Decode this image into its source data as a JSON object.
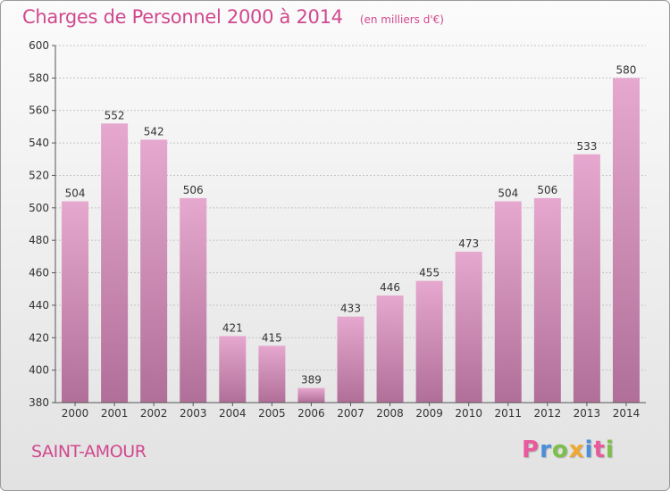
{
  "title": "Charges de Personnel 2000 à 2014",
  "subtitle": "(en milliers d'€)",
  "city": "SAINT-AMOUR",
  "logo": {
    "text": "Proxiti",
    "colors": [
      "#e85a9c",
      "#4a8fd8",
      "#7cc04a",
      "#f0a830",
      "#4a8fd8",
      "#e85a9c",
      "#7cc04a"
    ]
  },
  "colors": {
    "bar_light": "#e6a8cf",
    "bar_dark": "#b06f98",
    "accent": "#d0488e"
  },
  "chart_data": {
    "type": "bar",
    "categories": [
      "2000",
      "2001",
      "2002",
      "2003",
      "2004",
      "2005",
      "2006",
      "2007",
      "2008",
      "2009",
      "2010",
      "2011",
      "2012",
      "2013",
      "2014"
    ],
    "values": [
      504,
      552,
      542,
      506,
      421,
      415,
      389,
      433,
      446,
      455,
      473,
      504,
      506,
      533,
      580
    ],
    "ylim": [
      380,
      600
    ],
    "yticks": [
      380,
      400,
      420,
      440,
      460,
      480,
      500,
      520,
      540,
      560,
      580,
      600
    ],
    "grid": true
  }
}
